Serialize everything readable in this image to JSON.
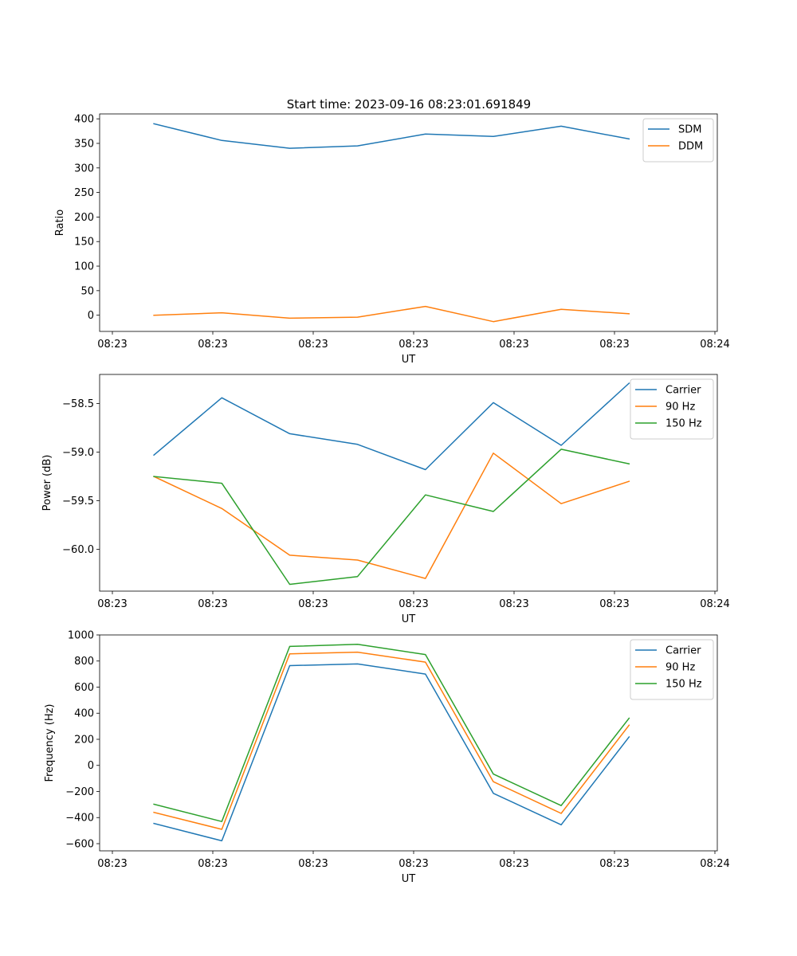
{
  "figure": {
    "title": "Start time: 2023-09-16 08:23:01.691849"
  },
  "chart_data": [
    {
      "type": "line",
      "title": "Start time: 2023-09-16 08:23:01.691849",
      "xlabel": "UT",
      "ylabel": "Ratio",
      "x_ticks": [
        "08:23",
        "08:23",
        "08:23",
        "08:23",
        "08:23",
        "08:23",
        "08:24"
      ],
      "x": [
        1,
        2,
        3,
        4,
        5,
        6,
        7,
        8
      ],
      "xlim": [
        0.2,
        9.3
      ],
      "ylim": [
        -33,
        410
      ],
      "yticks": [
        0,
        50,
        100,
        150,
        200,
        250,
        300,
        350,
        400
      ],
      "ytick_labels": [
        "0",
        "50",
        "100",
        "150",
        "200",
        "250",
        "300",
        "350",
        "400"
      ],
      "legend_loc": "upper right",
      "series": [
        {
          "name": "SDM",
          "color": "#1f77b4",
          "values": [
            390,
            356,
            340,
            345,
            369,
            364,
            385,
            359
          ]
        },
        {
          "name": "DDM",
          "color": "#ff7f0e",
          "values": [
            0,
            5,
            -6,
            -4,
            18,
            -13,
            12,
            3
          ]
        }
      ]
    },
    {
      "type": "line",
      "xlabel": "UT",
      "ylabel": "Power (dB)",
      "x_ticks": [
        "08:23",
        "08:23",
        "08:23",
        "08:23",
        "08:23",
        "08:23",
        "08:24"
      ],
      "x": [
        1,
        2,
        3,
        4,
        5,
        6,
        7,
        8
      ],
      "xlim": [
        0.2,
        9.3
      ],
      "ylim": [
        -60.43,
        -58.2
      ],
      "yticks": [
        -58.5,
        -59.0,
        -59.5,
        -60.0
      ],
      "ytick_labels": [
        "−58.5",
        "−59.0",
        "−59.5",
        "−60.0"
      ],
      "legend_loc": "upper right",
      "series": [
        {
          "name": "Carrier",
          "color": "#1f77b4",
          "values": [
            -59.03,
            -58.44,
            -58.81,
            -58.92,
            -59.18,
            -58.49,
            -58.93,
            -58.29
          ]
        },
        {
          "name": "90 Hz",
          "color": "#ff7f0e",
          "values": [
            -59.25,
            -59.58,
            -60.06,
            -60.11,
            -60.3,
            -59.01,
            -59.53,
            -59.3
          ]
        },
        {
          "name": "150 Hz",
          "color": "#2ca02c",
          "values": [
            -59.25,
            -59.32,
            -60.36,
            -60.28,
            -59.44,
            -59.61,
            -58.97,
            -59.12
          ]
        }
      ]
    },
    {
      "type": "line",
      "xlabel": "UT",
      "ylabel": "Frequency (Hz)",
      "x_ticks": [
        "08:23",
        "08:23",
        "08:23",
        "08:23",
        "08:23",
        "08:23",
        "08:24"
      ],
      "x": [
        1,
        2,
        3,
        4,
        5,
        6,
        7,
        8
      ],
      "xlim": [
        0.2,
        9.3
      ],
      "ylim": [
        -655,
        1000
      ],
      "yticks": [
        -600,
        -400,
        -200,
        0,
        200,
        400,
        600,
        800,
        1000
      ],
      "ytick_labels": [
        "−600",
        "−400",
        "−200",
        "0",
        "200",
        "400",
        "600",
        "800",
        "1000"
      ],
      "legend_loc": "upper right",
      "series": [
        {
          "name": "Carrier",
          "color": "#1f77b4",
          "values": [
            -445,
            -578,
            765,
            778,
            700,
            -214,
            -455,
            218
          ]
        },
        {
          "name": "90 Hz",
          "color": "#ff7f0e",
          "values": [
            -360,
            -490,
            855,
            868,
            792,
            -125,
            -368,
            308
          ]
        },
        {
          "name": "150 Hz",
          "color": "#2ca02c",
          "values": [
            -298,
            -430,
            912,
            928,
            850,
            -66,
            -308,
            362
          ]
        }
      ]
    }
  ]
}
